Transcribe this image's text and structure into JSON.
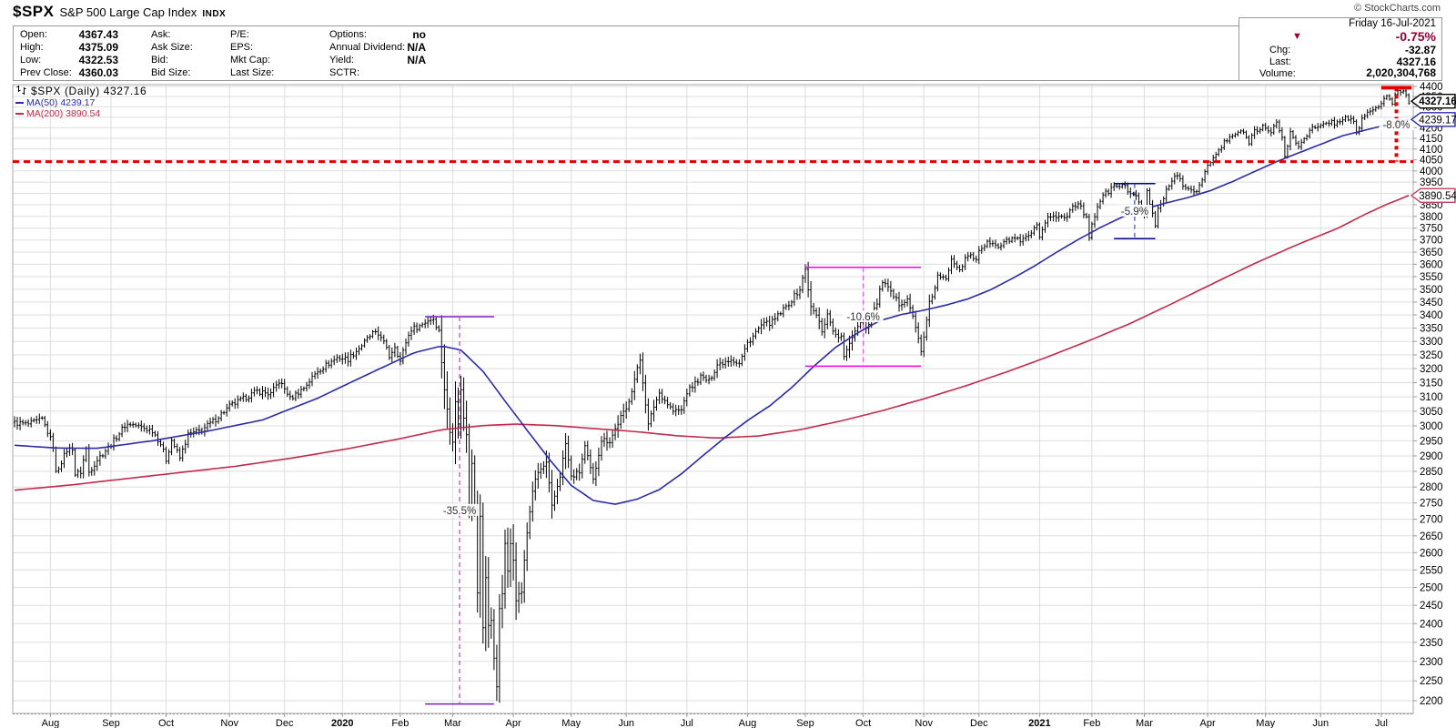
{
  "header": {
    "symbol": "$SPX",
    "name": "S&P 500 Large Cap Index",
    "exchange": "INDX",
    "credit": "© StockCharts.com"
  },
  "quote": {
    "c1": [
      {
        "l": "Open:",
        "v": "4367.43"
      },
      {
        "l": "High:",
        "v": "4375.09"
      },
      {
        "l": "Low:",
        "v": "4322.53"
      },
      {
        "l": "Prev Close:",
        "v": "4360.03"
      }
    ],
    "c2": [
      {
        "l": "Ask:",
        "v": ""
      },
      {
        "l": "Ask Size:",
        "v": ""
      },
      {
        "l": "Bid:",
        "v": ""
      },
      {
        "l": "Bid Size:",
        "v": ""
      }
    ],
    "c3": [
      {
        "l": "P/E:",
        "v": ""
      },
      {
        "l": "EPS:",
        "v": ""
      },
      {
        "l": "Mkt Cap:",
        "v": ""
      },
      {
        "l": "Last Size:",
        "v": ""
      }
    ],
    "c4": [
      {
        "l": "Options:",
        "v": "no"
      },
      {
        "l": "Annual Dividend:",
        "v": "N/A"
      },
      {
        "l": "Yield:",
        "v": "N/A"
      },
      {
        "l": "SCTR:",
        "v": ""
      }
    ],
    "summary": {
      "date": "Friday 16-Jul-2021",
      "pct_change": "-0.75%",
      "chg_label": "Chg:",
      "chg": "-32.87",
      "last_label": "Last:",
      "last": "4327.16",
      "volume_label": "Volume:",
      "volume": "2,020,304,768",
      "down_color": "#990033",
      "down_arrow": "▼"
    }
  },
  "legend": {
    "line1": "$SPX (Daily) 4327.16",
    "line2": "MA(50) 4239.17",
    "line3": "MA(200) 3890.54",
    "ma50_color": "#2A2AA8",
    "ma200_color": "#C2294B"
  },
  "chart_data": {
    "type": "bar",
    "subtype": "daily-ohlc-log-scale",
    "title": "$SPX S&P 500 Large Cap Index (Daily)",
    "last_close": 4327.16,
    "y_axis": {
      "min": 2200,
      "max": 4400,
      "tick_step": 50,
      "scale": "log"
    },
    "x_axis": {
      "months": [
        {
          "label": "Aug",
          "day": 13
        },
        {
          "label": "Sep",
          "day": 35
        },
        {
          "label": "Oct",
          "day": 55
        },
        {
          "label": "Nov",
          "day": 78
        },
        {
          "label": "Dec",
          "day": 98
        },
        {
          "label": "2020",
          "day": 119,
          "bold": true
        },
        {
          "label": "Feb",
          "day": 140
        },
        {
          "label": "Mar",
          "day": 159
        },
        {
          "label": "Apr",
          "day": 181
        },
        {
          "label": "May",
          "day": 202
        },
        {
          "label": "Jun",
          "day": 222
        },
        {
          "label": "Jul",
          "day": 244
        },
        {
          "label": "Aug",
          "day": 266
        },
        {
          "label": "Sep",
          "day": 287
        },
        {
          "label": "Oct",
          "day": 308
        },
        {
          "label": "Nov",
          "day": 330
        },
        {
          "label": "Dec",
          "day": 350
        },
        {
          "label": "2021",
          "day": 372,
          "bold": true
        },
        {
          "label": "Feb",
          "day": 391
        },
        {
          "label": "Mar",
          "day": 410
        },
        {
          "label": "Apr",
          "day": 433
        },
        {
          "label": "May",
          "day": 454
        },
        {
          "label": "Jun",
          "day": 474
        },
        {
          "label": "Jul",
          "day": 496
        }
      ]
    },
    "total_days": 507,
    "bar_color": "#000000",
    "grid_color": "#dedede",
    "price_anchors": [
      [
        0,
        3010
      ],
      [
        5,
        3006
      ],
      [
        10,
        3022
      ],
      [
        12,
        2980
      ],
      [
        14,
        2932
      ],
      [
        15,
        2845
      ],
      [
        17,
        2882
      ],
      [
        19,
        2919
      ],
      [
        21,
        2926
      ],
      [
        22,
        2840
      ],
      [
        24,
        2848
      ],
      [
        26,
        2924
      ],
      [
        27,
        2847
      ],
      [
        30,
        2888
      ],
      [
        35,
        2938
      ],
      [
        40,
        3001
      ],
      [
        42,
        3007
      ],
      [
        47,
        2992
      ],
      [
        50,
        2985
      ],
      [
        53,
        2940
      ],
      [
        55,
        2888
      ],
      [
        57,
        2952
      ],
      [
        60,
        2893
      ],
      [
        63,
        2970
      ],
      [
        68,
        2986
      ],
      [
        73,
        3023
      ],
      [
        78,
        3067
      ],
      [
        83,
        3093
      ],
      [
        88,
        3120
      ],
      [
        93,
        3110
      ],
      [
        96,
        3154
      ],
      [
        99,
        3114
      ],
      [
        100,
        3093
      ],
      [
        105,
        3132
      ],
      [
        110,
        3192
      ],
      [
        117,
        3240
      ],
      [
        121,
        3235
      ],
      [
        125,
        3275
      ],
      [
        130,
        3330
      ],
      [
        133,
        3321
      ],
      [
        136,
        3244
      ],
      [
        138,
        3283
      ],
      [
        140,
        3226
      ],
      [
        142,
        3298
      ],
      [
        144,
        3346
      ],
      [
        147,
        3358
      ],
      [
        150,
        3380
      ],
      [
        152,
        3386
      ],
      [
        154,
        3338
      ],
      [
        155,
        3226
      ],
      [
        156,
        3128
      ],
      [
        158,
        2979
      ],
      [
        159,
        2954
      ],
      [
        160,
        3090
      ],
      [
        161,
        3003
      ],
      [
        162,
        3130
      ],
      [
        163,
        3024
      ],
      [
        164,
        2972
      ],
      [
        165,
        2746
      ],
      [
        166,
        2882
      ],
      [
        167,
        2741
      ],
      [
        168,
        2481
      ],
      [
        169,
        2711
      ],
      [
        170,
        2386
      ],
      [
        171,
        2529
      ],
      [
        172,
        2398
      ],
      [
        173,
        2409
      ],
      [
        174,
        2305
      ],
      [
        175,
        2237
      ],
      [
        176,
        2447
      ],
      [
        177,
        2476
      ],
      [
        178,
        2630
      ],
      [
        179,
        2541
      ],
      [
        180,
        2627
      ],
      [
        181,
        2585
      ],
      [
        182,
        2470
      ],
      [
        184,
        2489
      ],
      [
        186,
        2659
      ],
      [
        188,
        2790
      ],
      [
        190,
        2846
      ],
      [
        193,
        2875
      ],
      [
        195,
        2737
      ],
      [
        198,
        2837
      ],
      [
        200,
        2940
      ],
      [
        202,
        2831
      ],
      [
        205,
        2848
      ],
      [
        207,
        2930
      ],
      [
        210,
        2820
      ],
      [
        213,
        2954
      ],
      [
        216,
        2949
      ],
      [
        220,
        3030
      ],
      [
        222,
        3056
      ],
      [
        227,
        3232
      ],
      [
        230,
        3002
      ],
      [
        232,
        3067
      ],
      [
        234,
        3113
      ],
      [
        239,
        3050
      ],
      [
        242,
        3053
      ],
      [
        244,
        3116
      ],
      [
        249,
        3170
      ],
      [
        252,
        3155
      ],
      [
        255,
        3215
      ],
      [
        260,
        3236
      ],
      [
        263,
        3218
      ],
      [
        266,
        3294
      ],
      [
        271,
        3360
      ],
      [
        275,
        3373
      ],
      [
        280,
        3431
      ],
      [
        285,
        3500
      ],
      [
        287,
        3580
      ],
      [
        289,
        3427
      ],
      [
        291,
        3399
      ],
      [
        293,
        3341
      ],
      [
        295,
        3401
      ],
      [
        298,
        3319
      ],
      [
        300,
        3316
      ],
      [
        301,
        3237
      ],
      [
        303,
        3298
      ],
      [
        306,
        3363
      ],
      [
        308,
        3381
      ],
      [
        309,
        3348
      ],
      [
        313,
        3447
      ],
      [
        315,
        3534
      ],
      [
        318,
        3483
      ],
      [
        321,
        3443
      ],
      [
        324,
        3465
      ],
      [
        326,
        3391
      ],
      [
        328,
        3310
      ],
      [
        329,
        3270
      ],
      [
        330,
        3310
      ],
      [
        332,
        3443
      ],
      [
        334,
        3509
      ],
      [
        335,
        3550
      ],
      [
        338,
        3537
      ],
      [
        340,
        3627
      ],
      [
        343,
        3582
      ],
      [
        346,
        3635
      ],
      [
        349,
        3622
      ],
      [
        350,
        3662
      ],
      [
        354,
        3692
      ],
      [
        357,
        3668
      ],
      [
        360,
        3695
      ],
      [
        363,
        3709
      ],
      [
        365,
        3687
      ],
      [
        369,
        3727
      ],
      [
        371,
        3756
      ],
      [
        372,
        3701
      ],
      [
        375,
        3804
      ],
      [
        377,
        3800
      ],
      [
        380,
        3796
      ],
      [
        382,
        3799
      ],
      [
        384,
        3853
      ],
      [
        387,
        3850
      ],
      [
        389,
        3787
      ],
      [
        390,
        3714
      ],
      [
        391,
        3774
      ],
      [
        394,
        3872
      ],
      [
        397,
        3911
      ],
      [
        400,
        3935
      ],
      [
        402,
        3933
      ],
      [
        405,
        3907
      ],
      [
        407,
        3881
      ],
      [
        409,
        3829
      ],
      [
        410,
        3811
      ],
      [
        411,
        3902
      ],
      [
        413,
        3820
      ],
      [
        414,
        3768
      ],
      [
        415,
        3842
      ],
      [
        417,
        3876
      ],
      [
        419,
        3939
      ],
      [
        421,
        3969
      ],
      [
        423,
        3974
      ],
      [
        425,
        3913
      ],
      [
        427,
        3911
      ],
      [
        429,
        3909
      ],
      [
        431,
        3971
      ],
      [
        433,
        4020
      ],
      [
        436,
        4074
      ],
      [
        439,
        4129
      ],
      [
        443,
        4170
      ],
      [
        445,
        4185
      ],
      [
        448,
        4135
      ],
      [
        450,
        4187
      ],
      [
        453,
        4211
      ],
      [
        454,
        4193
      ],
      [
        456,
        4168
      ],
      [
        458,
        4233
      ],
      [
        460,
        4152
      ],
      [
        461,
        4063
      ],
      [
        463,
        4174
      ],
      [
        465,
        4127
      ],
      [
        466,
        4116
      ],
      [
        468,
        4156
      ],
      [
        471,
        4196
      ],
      [
        474,
        4202
      ],
      [
        477,
        4230
      ],
      [
        480,
        4220
      ],
      [
        482,
        4247
      ],
      [
        484,
        4246
      ],
      [
        486,
        4222
      ],
      [
        487,
        4166
      ],
      [
        489,
        4246
      ],
      [
        492,
        4281
      ],
      [
        494,
        4292
      ],
      [
        496,
        4320
      ],
      [
        498,
        4343
      ],
      [
        500,
        4321
      ],
      [
        502,
        4385
      ],
      [
        504,
        4374
      ],
      [
        505,
        4360
      ],
      [
        506,
        4327.16
      ]
    ],
    "volatility_windows": [
      [
        0,
        154,
        0.008
      ],
      [
        155,
        185,
        0.034
      ],
      [
        186,
        200,
        0.021
      ],
      [
        201,
        235,
        0.014
      ],
      [
        236,
        286,
        0.009
      ],
      [
        287,
        305,
        0.014
      ],
      [
        306,
        332,
        0.011
      ],
      [
        333,
        430,
        0.007
      ],
      [
        431,
        506,
        0.006
      ]
    ],
    "ma50": {
      "label": "MA(50)",
      "value": 4239.17,
      "color": "#2A2AA8",
      "anchors": [
        [
          0,
          2935
        ],
        [
          15,
          2926
        ],
        [
          30,
          2925
        ],
        [
          50,
          2950
        ],
        [
          70,
          2982
        ],
        [
          90,
          3020
        ],
        [
          110,
          3095
        ],
        [
          130,
          3188
        ],
        [
          145,
          3258
        ],
        [
          155,
          3283
        ],
        [
          162,
          3268
        ],
        [
          170,
          3190
        ],
        [
          178,
          3085
        ],
        [
          186,
          2985
        ],
        [
          194,
          2890
        ],
        [
          202,
          2805
        ],
        [
          210,
          2758
        ],
        [
          218,
          2746
        ],
        [
          226,
          2762
        ],
        [
          234,
          2792
        ],
        [
          242,
          2842
        ],
        [
          250,
          2902
        ],
        [
          258,
          2962
        ],
        [
          266,
          3018
        ],
        [
          274,
          3068
        ],
        [
          282,
          3132
        ],
        [
          290,
          3208
        ],
        [
          298,
          3278
        ],
        [
          306,
          3332
        ],
        [
          314,
          3378
        ],
        [
          322,
          3402
        ],
        [
          330,
          3418
        ],
        [
          338,
          3438
        ],
        [
          346,
          3462
        ],
        [
          354,
          3497
        ],
        [
          362,
          3542
        ],
        [
          370,
          3592
        ],
        [
          378,
          3648
        ],
        [
          386,
          3702
        ],
        [
          394,
          3752
        ],
        [
          402,
          3797
        ],
        [
          410,
          3832
        ],
        [
          418,
          3858
        ],
        [
          426,
          3882
        ],
        [
          434,
          3912
        ],
        [
          442,
          3952
        ],
        [
          450,
          3997
        ],
        [
          458,
          4042
        ],
        [
          466,
          4082
        ],
        [
          474,
          4122
        ],
        [
          482,
          4162
        ],
        [
          490,
          4188
        ],
        [
          498,
          4214
        ],
        [
          506,
          4239.17
        ]
      ]
    },
    "ma200": {
      "label": "MA(200)",
      "value": 3890.54,
      "color": "#C2294B",
      "anchors": [
        [
          0,
          2790
        ],
        [
          20,
          2806
        ],
        [
          40,
          2826
        ],
        [
          60,
          2846
        ],
        [
          80,
          2866
        ],
        [
          100,
          2892
        ],
        [
          120,
          2922
        ],
        [
          140,
          2957
        ],
        [
          155,
          2987
        ],
        [
          170,
          3001
        ],
        [
          182,
          3006
        ],
        [
          196,
          3001
        ],
        [
          210,
          2991
        ],
        [
          225,
          2981
        ],
        [
          240,
          2967
        ],
        [
          255,
          2959
        ],
        [
          270,
          2966
        ],
        [
          285,
          2987
        ],
        [
          300,
          3017
        ],
        [
          315,
          3052
        ],
        [
          330,
          3093
        ],
        [
          345,
          3138
        ],
        [
          360,
          3188
        ],
        [
          375,
          3243
        ],
        [
          390,
          3303
        ],
        [
          405,
          3368
        ],
        [
          420,
          3443
        ],
        [
          435,
          3523
        ],
        [
          450,
          3603
        ],
        [
          465,
          3678
        ],
        [
          480,
          3748
        ],
        [
          490,
          3808
        ],
        [
          498,
          3852
        ],
        [
          506,
          3890.54
        ]
      ]
    },
    "threshold_line": {
      "price": 4042.2,
      "color": "#E00000",
      "width": 3,
      "dash": "7,5"
    },
    "annotations": [
      {
        "label": "-35.5%",
        "day_start": 149,
        "day_end": 174,
        "price_top": 3393.5,
        "price_bottom": 2191.9,
        "line_color": "#781EBE",
        "dash_color": "#BE3CC8",
        "width": 1.5,
        "dotted": false
      },
      {
        "label": "-10.6%",
        "day_start": 287,
        "day_end": 329,
        "price_top": 3588,
        "price_bottom": 3209,
        "line_color": "#EE00EE",
        "dash_color": "#EE55EE",
        "width": 1.5,
        "dotted": false
      },
      {
        "label": "-5.9%",
        "day_start": 399,
        "day_end": 414,
        "price_top": 3943,
        "price_bottom": 3706,
        "line_color": "#00008B",
        "dash_color": "#4444B4",
        "width": 1.5,
        "dotted": false
      },
      {
        "label": "-8.0%",
        "day_start": 496,
        "day_end": 507,
        "price_top": 4393.7,
        "price_bottom": 4042.2,
        "line_color": "#E00000",
        "dash_color": "#E00000",
        "width": 4,
        "dotted": true,
        "no_bottom_line": true
      }
    ],
    "callouts": [
      {
        "text": "4327.16",
        "price": 4327.16,
        "border": "#000000",
        "bold": true
      },
      {
        "text": "4239.17",
        "price": 4239.17,
        "border": "#2A2AA8",
        "bold": false
      },
      {
        "text": "3890.54",
        "price": 3890.54,
        "border": "#C04060",
        "bold": false
      }
    ]
  }
}
